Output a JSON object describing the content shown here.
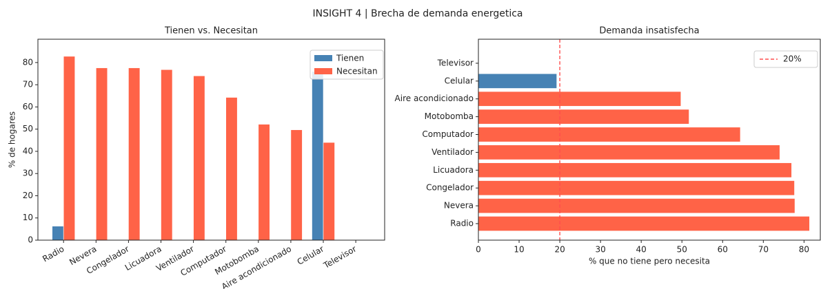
{
  "title": "INSIGHT 4 | Brecha de demanda energetica",
  "chart_data": [
    {
      "type": "bar",
      "title": "Tienen vs. Necesitan",
      "ylabel": "% de hogares",
      "categories": [
        "Radio",
        "Nevera",
        "Congelador",
        "Licuadora",
        "Ventilador",
        "Computador",
        "Motobomba",
        "Aire acondicionado",
        "Celular",
        "Televisor"
      ],
      "series": [
        {
          "name": "Tienen",
          "color": "#4682b4",
          "values": [
            6.3,
            0,
            0,
            0,
            0,
            0,
            0,
            0,
            76,
            0
          ]
        },
        {
          "name": "Necesitan",
          "color": "#ff6347",
          "values": [
            82.8,
            77.6,
            77.6,
            76.8,
            74,
            64.3,
            52.2,
            49.7,
            44,
            0
          ]
        }
      ],
      "ylim": [
        0,
        90.5
      ],
      "yticks": [
        0,
        10,
        20,
        30,
        40,
        50,
        60,
        70,
        80
      ],
      "legend": "upper right",
      "xtick_rotation": 30
    },
    {
      "type": "barh",
      "title": "Demanda insatisfecha",
      "xlabel": "% que no tiene pero necesita",
      "categories": [
        "Radio",
        "Nevera",
        "Congelador",
        "Licuadora",
        "Ventilador",
        "Computador",
        "Motobomba",
        "Aire acondicionado",
        "Celular",
        "Televisor"
      ],
      "values": [
        81.3,
        77.7,
        77.6,
        76.9,
        74,
        64.3,
        51.7,
        49.7,
        19.2,
        0
      ],
      "colors": [
        "#ff6347",
        "#ff6347",
        "#ff6347",
        "#ff6347",
        "#ff6347",
        "#ff6347",
        "#ff6347",
        "#ff6347",
        "#4682b4",
        "#4682b4"
      ],
      "xlim": [
        0,
        84
      ],
      "xticks": [
        0,
        10,
        20,
        30,
        40,
        50,
        60,
        70,
        80
      ],
      "reference_line": {
        "value": 20,
        "label": "20%",
        "color": "#ff4d4d"
      },
      "legend": "upper right"
    }
  ]
}
